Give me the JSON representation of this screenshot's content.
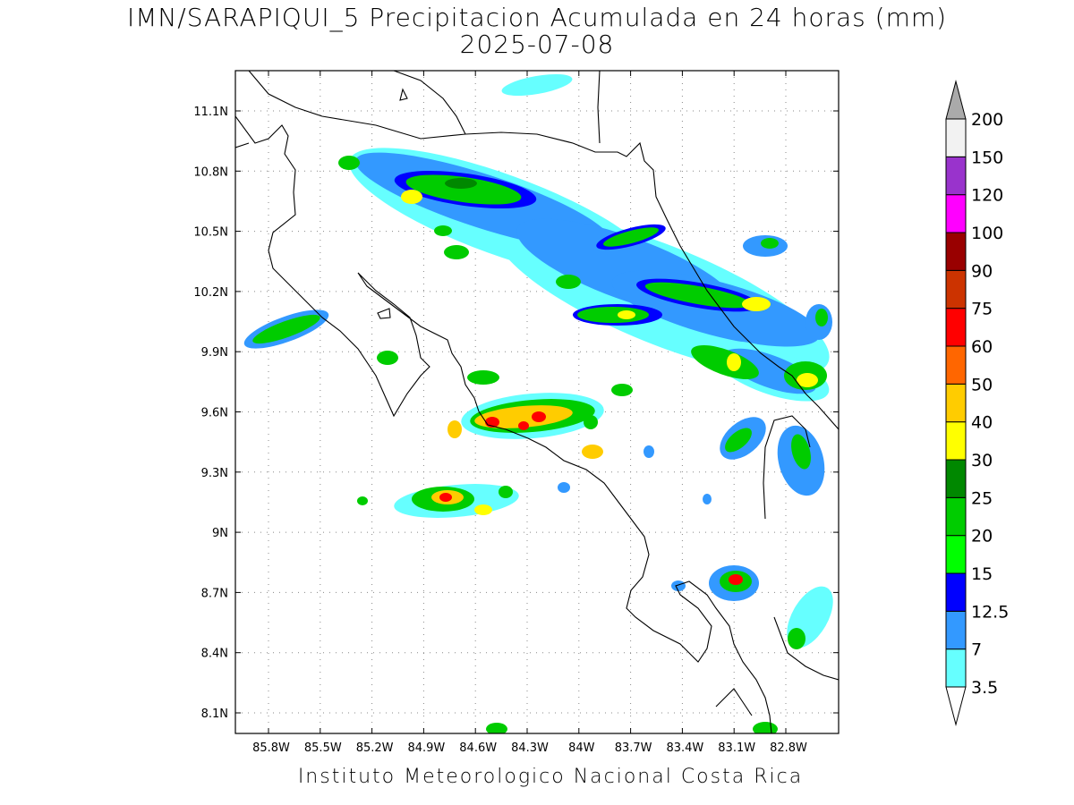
{
  "title_line1": "IMN/SARAPIQUI_5 Precipitacion Acumulada en 24 horas (mm)",
  "title_line2": "2025-07-08",
  "credit": "Instituto Meteorologico Nacional Costa Rica",
  "map": {
    "lat_range": [
      8.0,
      11.3
    ],
    "lon_range": [
      -86.06,
      -83.04
    ],
    "y_ticks": [
      "11.1N",
      "10.8N",
      "10.5N",
      "10.2N",
      "9.9N",
      "9.6N",
      "9.3N",
      "9N",
      "8.7N",
      "8.4N",
      "8.1N"
    ],
    "x_ticks": [
      "85.8W",
      "85.5W",
      "85.2W",
      "84.9W",
      "84.6W",
      "84.3W",
      "84W",
      "83.7W",
      "83.4W",
      "83.1W",
      "82.8W"
    ]
  },
  "colorbar": {
    "levels": [
      "3.5",
      "7",
      "12.5",
      "15",
      "20",
      "25",
      "30",
      "40",
      "50",
      "60",
      "75",
      "90",
      "100",
      "120",
      "150",
      "200"
    ],
    "colors": [
      "#66ffff",
      "#3399ff",
      "#0000ff",
      "#00ff00",
      "#00cc00",
      "#008800",
      "#ffff00",
      "#ffcc00",
      "#ff6600",
      "#ff0000",
      "#cc3300",
      "#990000",
      "#ff00ff",
      "#9933cc",
      "#f2f2f2"
    ],
    "over_color": "#aaaaaa",
    "under_color": "#ffffff"
  }
}
